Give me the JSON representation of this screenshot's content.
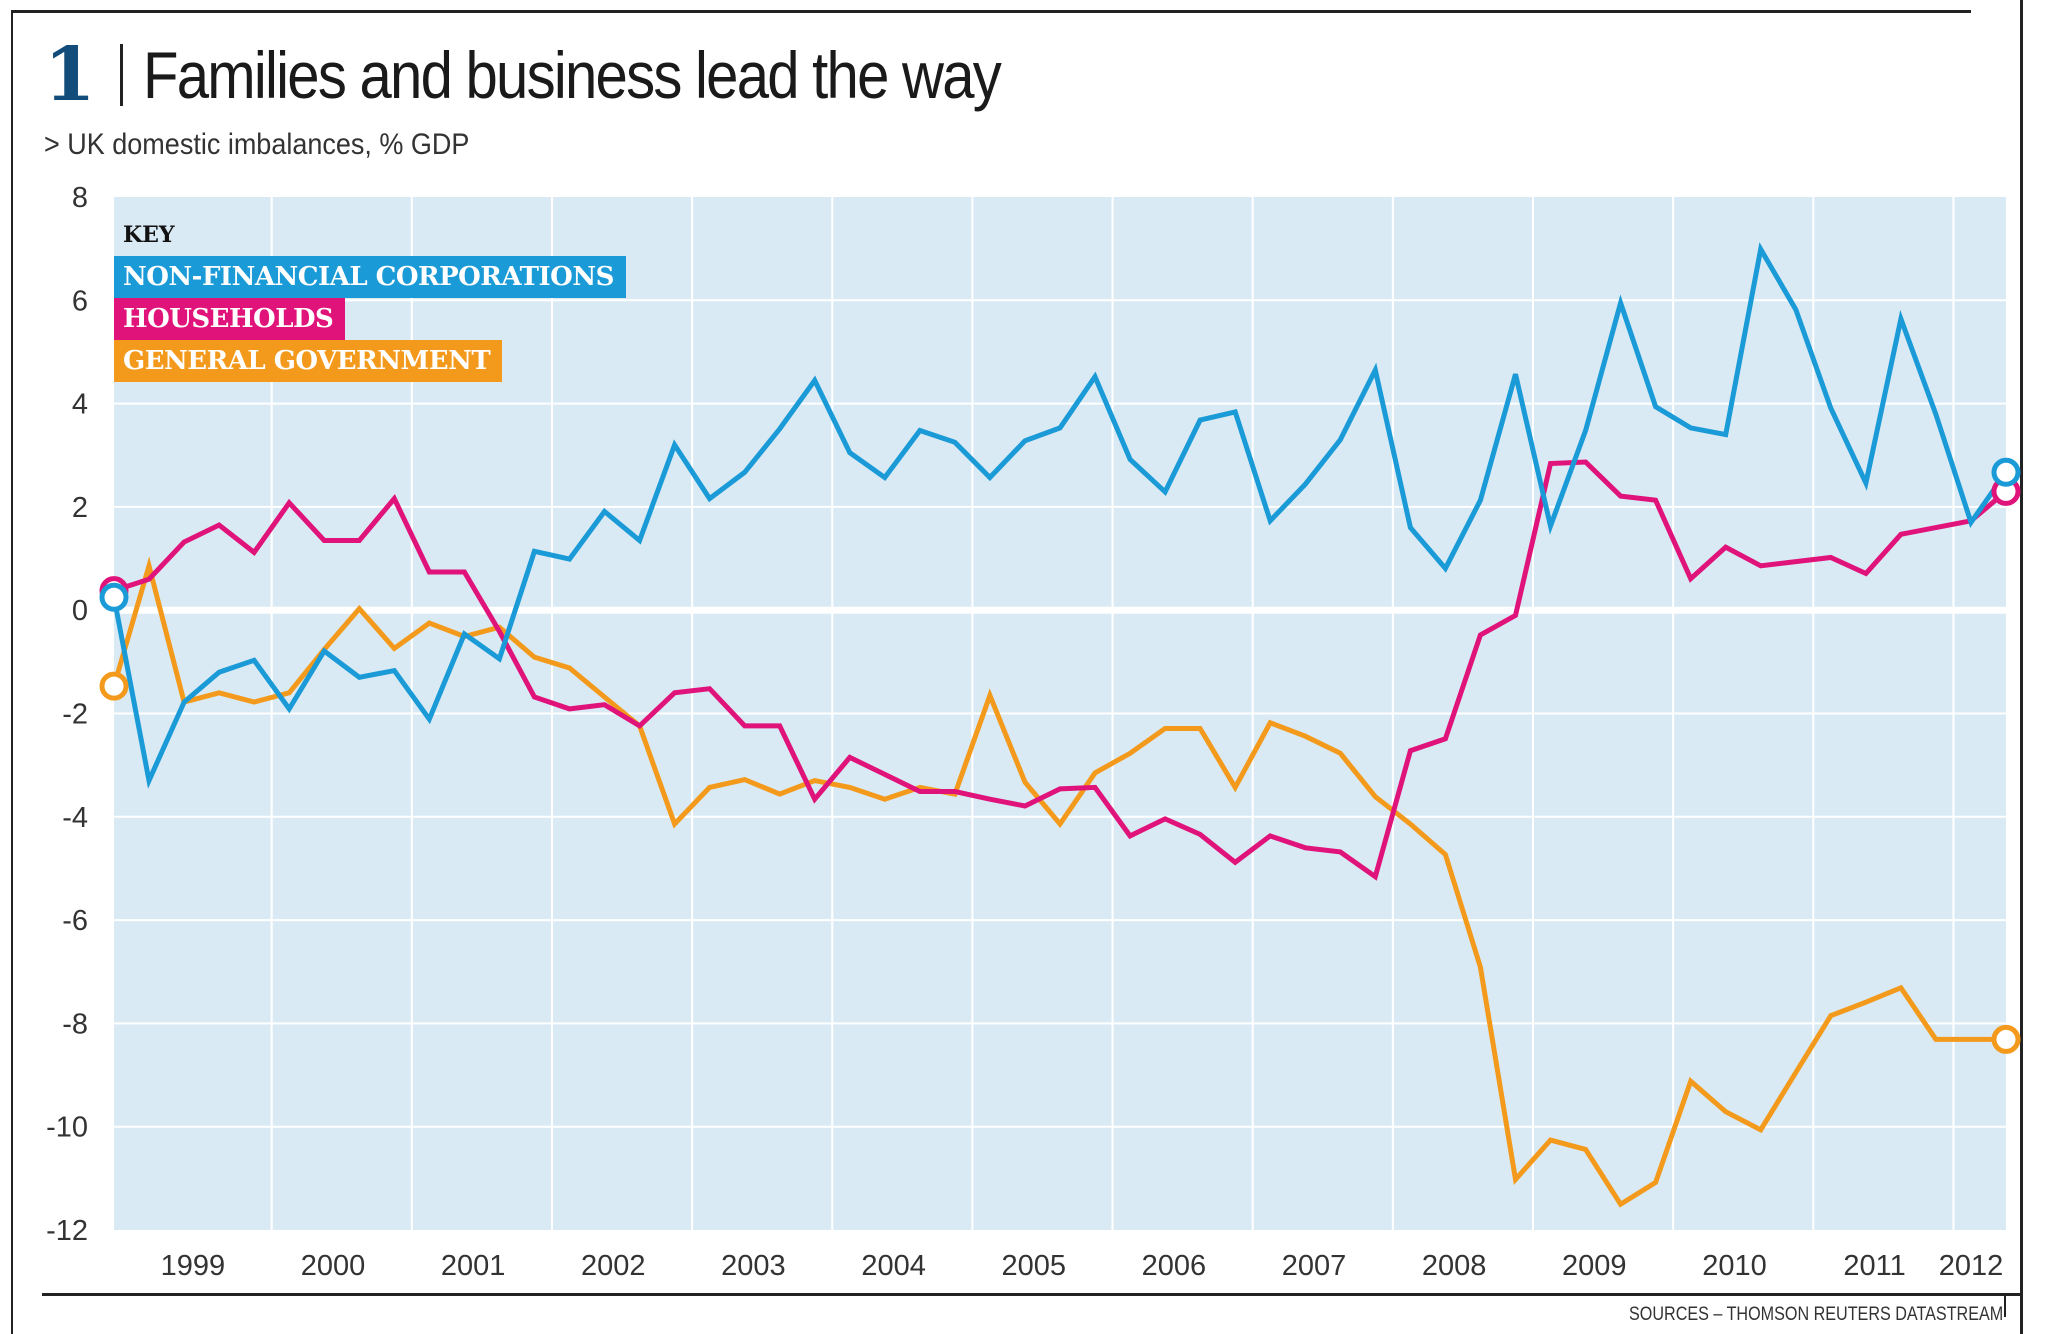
{
  "figure": {
    "number": "1",
    "title": "Families and business lead the way",
    "subtitle": "> UK domestic imbalances, % GDP",
    "source": "SOURCES – THOMSON REUTERS DATASTREAM"
  },
  "legend": {
    "heading": "KEY"
  },
  "chart_data": {
    "type": "line",
    "title": "Families and business lead the way",
    "subtitle": "UK domestic imbalances, % GDP",
    "xlabel": "",
    "ylabel": "% GDP",
    "ylim": [
      -12,
      8
    ],
    "yticks": [
      8,
      6,
      4,
      2,
      0,
      -2,
      -4,
      -6,
      -8,
      -10,
      -12
    ],
    "ytick_labels": [
      "8",
      "6",
      "4",
      "2",
      "0",
      "-2",
      "-4",
      "-6",
      "-8",
      "-10",
      "-12"
    ],
    "xtick_labels": [
      "1999",
      "2000",
      "2001",
      "2002",
      "2003",
      "2004",
      "2005",
      "2006",
      "2007",
      "2008",
      "2009",
      "2010",
      "2011",
      "2012"
    ],
    "grid": true,
    "legend_position": "top-left",
    "frequency": "quarterly",
    "x_start": "1998 Q4",
    "series": [
      {
        "name": "NON-FINANCIAL CORPORATIONS",
        "color": "#1a9ad6",
        "end_markers": true,
        "values": [
          0.25,
          -3.3,
          -1.78,
          -1.2,
          -0.97,
          -1.91,
          -0.79,
          -1.3,
          -1.17,
          -2.11,
          -0.46,
          -0.94,
          1.14,
          0.99,
          1.91,
          1.35,
          3.2,
          2.16,
          2.67,
          3.51,
          4.45,
          3.05,
          2.57,
          3.48,
          3.25,
          2.57,
          3.28,
          3.53,
          4.52,
          2.92,
          2.29,
          3.68,
          3.84,
          1.73,
          2.44,
          3.3,
          4.65,
          1.6,
          0.81,
          2.13,
          4.57,
          1.63,
          3.48,
          5.95,
          3.94,
          3.53,
          3.4,
          6.99,
          5.82,
          3.91,
          2.46,
          5.64,
          3.79,
          1.7,
          2.67
        ]
      },
      {
        "name": "HOUSEHOLDS",
        "color": "#e0137a",
        "end_markers": true,
        "values": [
          0.38,
          0.6,
          1.32,
          1.65,
          1.12,
          2.08,
          1.35,
          1.35,
          2.16,
          0.74,
          0.74,
          -0.41,
          -1.68,
          -1.91,
          -1.83,
          -2.24,
          -1.6,
          -1.52,
          -2.24,
          -2.24,
          -3.66,
          -2.85,
          -3.18,
          -3.51,
          -3.51,
          -3.66,
          -3.79,
          -3.46,
          -3.43,
          -4.37,
          -4.04,
          -4.34,
          -4.88,
          -4.37,
          -4.6,
          -4.68,
          -5.16,
          -2.72,
          -2.49,
          -0.48,
          -0.1,
          2.84,
          2.87,
          2.21,
          2.13,
          0.61,
          1.22,
          0.86,
          0.94,
          1.02,
          0.71,
          1.47,
          1.6,
          1.73,
          2.3
        ]
      },
      {
        "name": "GENERAL GOVERNMENT",
        "color": "#f39a1c",
        "end_markers": true,
        "values": [
          -1.47,
          0.86,
          -1.78,
          -1.6,
          -1.78,
          -1.6,
          -0.76,
          0.03,
          -0.74,
          -0.25,
          -0.51,
          -0.33,
          -0.91,
          -1.12,
          -1.68,
          -2.24,
          -4.14,
          -3.43,
          -3.28,
          -3.56,
          -3.3,
          -3.43,
          -3.66,
          -3.43,
          -3.56,
          -1.65,
          -3.33,
          -4.14,
          -3.15,
          -2.77,
          -2.29,
          -2.29,
          -3.43,
          -2.18,
          -2.44,
          -2.77,
          -3.61,
          -4.14,
          -4.73,
          -6.91,
          -11.02,
          -10.26,
          -10.44,
          -11.5,
          -11.08,
          -9.12,
          -9.71,
          -10.06,
          -8.95,
          -7.85,
          -7.59,
          -7.31,
          -8.31,
          -8.31,
          -8.31
        ]
      }
    ]
  }
}
